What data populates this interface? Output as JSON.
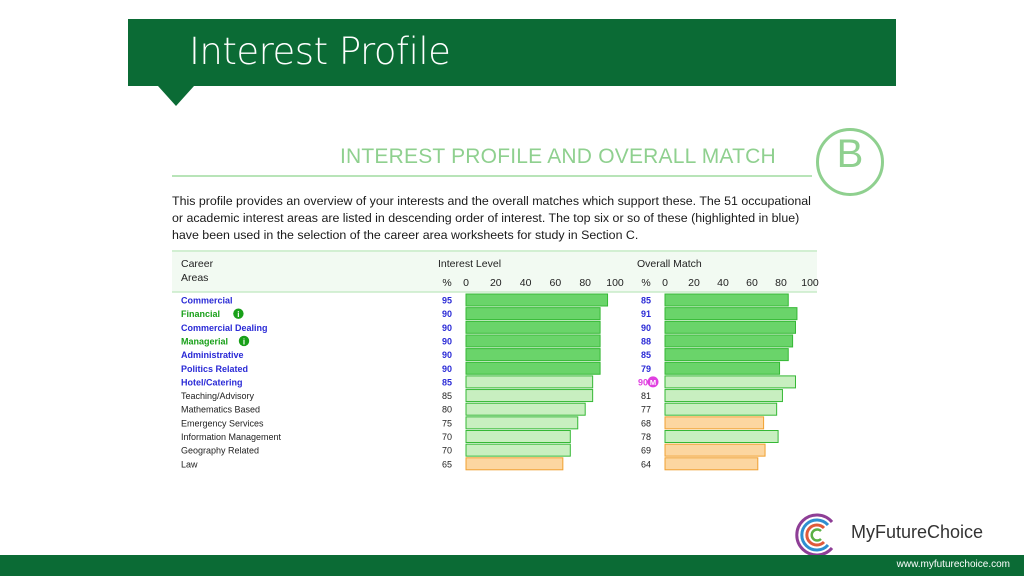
{
  "slide_title": "Interest Profile",
  "sheet_title": "INTEREST PROFILE AND OVERALL MATCH",
  "section_letter": "B",
  "intro_text": "This profile provides an overview of your interests and the overall matches which support these. The 51 occupational or academic interest areas are listed in descending order of interest. The top six or so of these (highlighted in blue) have been used in the selection of the career area worksheets for study in Section C.",
  "headers": {
    "career_line1": "Career",
    "career_line2": "Areas",
    "interest_level": "Interest Level",
    "overall_match": "Overall Match",
    "pct": "%",
    "ticks": [
      "0",
      "20",
      "40",
      "60",
      "80",
      "100"
    ]
  },
  "colors": {
    "brand_green": "#0b6b35",
    "top_label": "#2a2ad6",
    "managerial_label": "#19a019",
    "bar_strong": "#6ad46a",
    "bar_light": "#c8efc0",
    "bar_orange": "#fcd6a0",
    "bar_green_border": "#35b835",
    "bar_orange_border": "#f0a030",
    "marker_m": "#e040e0"
  },
  "chart_data": {
    "type": "bar",
    "orientation": "horizontal",
    "title": "INTEREST PROFILE AND OVERALL MATCH",
    "categories": [
      "Commercial",
      "Financial",
      "Commercial Dealing",
      "Managerial",
      "Administrative",
      "Politics Related",
      "Hotel/Catering",
      "Teaching/Advisory",
      "Mathematics Based",
      "Emergency Services",
      "Information Management",
      "Geography Related",
      "Law"
    ],
    "highlighted": [
      true,
      true,
      true,
      true,
      true,
      true,
      true,
      false,
      false,
      false,
      false,
      false,
      false
    ],
    "info_icon": [
      false,
      true,
      false,
      true,
      false,
      false,
      false,
      false,
      false,
      false,
      false,
      false,
      false
    ],
    "series": [
      {
        "name": "Interest Level",
        "values": [
          95,
          90,
          90,
          90,
          90,
          90,
          85,
          85,
          80,
          75,
          70,
          70,
          65
        ],
        "styles": [
          "strong",
          "strong",
          "strong",
          "strong",
          "strong",
          "strong",
          "light",
          "light",
          "light",
          "light",
          "light",
          "light",
          "orange"
        ]
      },
      {
        "name": "Overall Match",
        "values": [
          85,
          91,
          90,
          88,
          85,
          79,
          90,
          81,
          77,
          68,
          78,
          69,
          64
        ],
        "styles": [
          "strong",
          "strong",
          "strong",
          "strong",
          "strong",
          "strong",
          "light",
          "light",
          "light",
          "orange",
          "light",
          "orange",
          "orange"
        ],
        "markers": [
          "",
          "",
          "",
          "",
          "",
          "",
          "M",
          "",
          "",
          "",
          "",
          "",
          ""
        ]
      }
    ],
    "xlim": [
      0,
      100
    ]
  },
  "logo": {
    "name": "MyFutureChoice",
    "icon": "concentric-c-logo-icon"
  },
  "footer_url": "www.myfuturechoice.com"
}
